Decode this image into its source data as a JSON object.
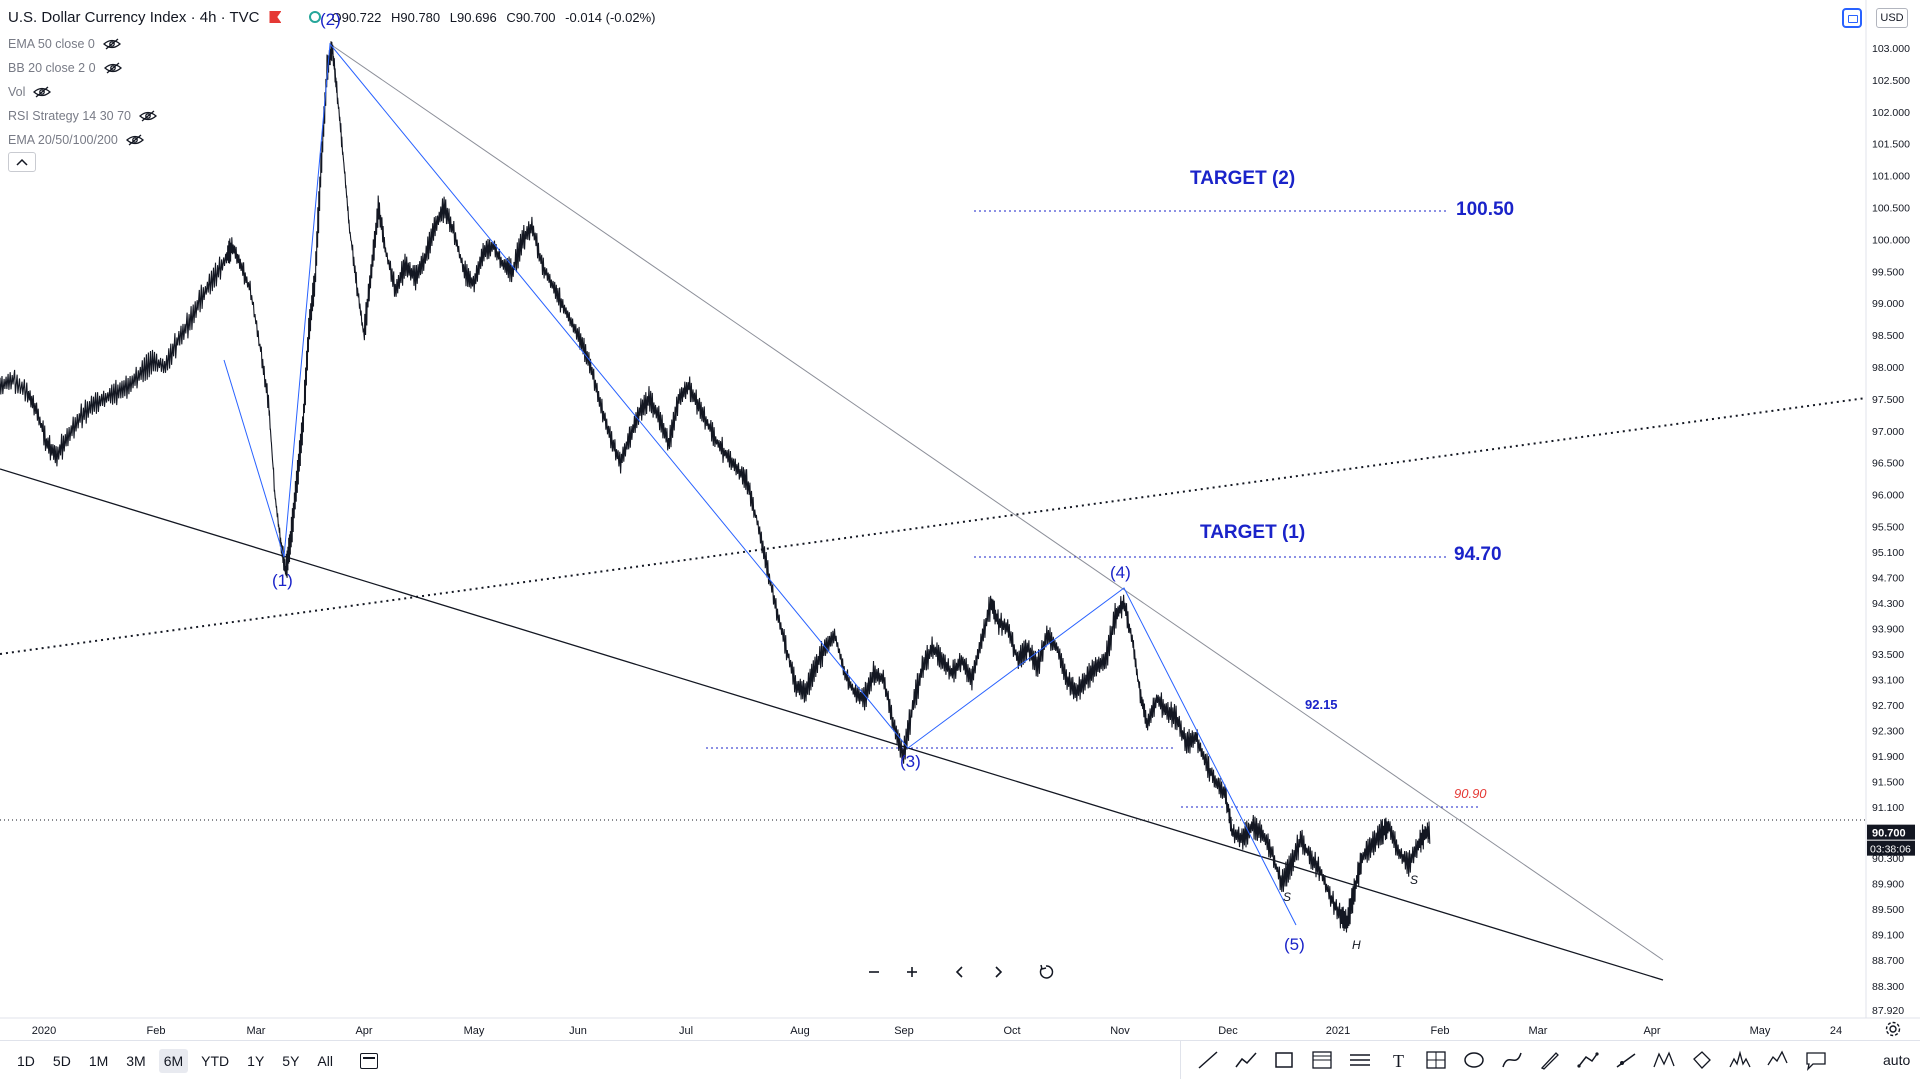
{
  "header": {
    "symbol_title": "U.S. Dollar Currency Index · 4h · TVC",
    "ohlc": {
      "open": "O90.722",
      "high": "H90.780",
      "low": "L90.696",
      "close": "C90.700",
      "change": "-0.014 (-0.02%)"
    }
  },
  "indicators": [
    {
      "label": "EMA 50 close 0"
    },
    {
      "label": "BB 20 close 2 0"
    },
    {
      "label": "Vol"
    },
    {
      "label": "RSI Strategy 14 30 70"
    },
    {
      "label": "EMA 20/50/100/200"
    }
  ],
  "currency_badge": "USD",
  "price_axis": {
    "ticks": [
      "103.000",
      "102.500",
      "102.000",
      "101.500",
      "101.000",
      "100.500",
      "100.000",
      "99.500",
      "99.000",
      "98.500",
      "98.000",
      "97.500",
      "97.000",
      "96.500",
      "96.000",
      "95.500",
      "95.100",
      "94.700",
      "94.300",
      "93.900",
      "93.500",
      "93.100",
      "92.700",
      "92.300",
      "91.900",
      "91.500",
      "91.100",
      "90.300",
      "89.900",
      "89.500",
      "89.100",
      "88.700",
      "88.300",
      "87.920"
    ],
    "last_price": "90.700",
    "countdown": "03:38:06"
  },
  "time_axis": {
    "ticks": [
      "2020",
      "Feb",
      "Mar",
      "Apr",
      "May",
      "Jun",
      "Jul",
      "Aug",
      "Sep",
      "Oct",
      "Nov",
      "Dec",
      "2021",
      "Feb",
      "Mar",
      "Apr",
      "May",
      "24"
    ]
  },
  "annotations": {
    "target2_label": "TARGET (2)",
    "target2_value": "100.50",
    "target1_label": "TARGET (1)",
    "target1_value": "94.70",
    "level_92_15": "92.15",
    "level_90_90": "90.90",
    "wave1": "(1)",
    "wave2": "(2)",
    "wave3": "(3)",
    "wave4": "(4)",
    "wave5": "(5)",
    "shoulder_left": "S",
    "shoulder_right": "S",
    "head": "H"
  },
  "colors": {
    "wave_blue": "#2962ff",
    "label_blue": "#1a23c9",
    "red_label": "#e53935",
    "candle": "#131722",
    "trend_gray": "#8c8f99",
    "trend_black": "#131722",
    "price_tag_bg": "#131722"
  },
  "bottom_bar": {
    "ranges": [
      "1D",
      "5D",
      "1M",
      "3M",
      "6M",
      "YTD",
      "1Y",
      "5Y",
      "All"
    ],
    "active_range": "6M",
    "auto_label": "auto"
  },
  "drawing_tools": [
    "trend-line-icon",
    "path-icon",
    "rectangle-icon",
    "gann-box-icon",
    "horizontal-lines-icon",
    "text-icon",
    "crosshair-frame-icon",
    "ellipse-icon",
    "curve-icon",
    "brush-icon",
    "polyline-icon",
    "ray-icon",
    "xabcd-pattern-icon",
    "rotated-rectangle-icon",
    "head-shoulders-icon",
    "elliott-wave-icon",
    "callout-icon"
  ],
  "nav_controls": [
    "zoom-out-icon",
    "zoom-in-icon",
    "scroll-left-icon",
    "scroll-right-icon",
    "reset-icon"
  ],
  "series": [
    [
      0,
      97.7
    ],
    [
      10,
      97.8
    ],
    [
      22,
      97.6
    ],
    [
      30,
      97.3
    ],
    [
      38,
      96.8
    ],
    [
      46,
      96.6
    ],
    [
      55,
      96.9
    ],
    [
      65,
      97.2
    ],
    [
      75,
      97.4
    ],
    [
      85,
      97.5
    ],
    [
      95,
      97.6
    ],
    [
      105,
      97.7
    ],
    [
      115,
      97.9
    ],
    [
      125,
      98.1
    ],
    [
      135,
      98.0
    ],
    [
      145,
      98.4
    ],
    [
      155,
      98.7
    ],
    [
      165,
      99.1
    ],
    [
      175,
      99.4
    ],
    [
      185,
      99.7
    ],
    [
      190,
      99.9
    ],
    [
      197,
      99.6
    ],
    [
      205,
      99.2
    ],
    [
      213,
      98.3
    ],
    [
      220,
      97.4
    ],
    [
      225,
      96.0
    ],
    [
      230,
      95.2
    ],
    [
      234,
      94.8
    ],
    [
      238,
      95.3
    ],
    [
      243,
      96.2
    ],
    [
      248,
      97.1
    ],
    [
      253,
      98.6
    ],
    [
      258,
      99.4
    ],
    [
      263,
      101.2
    ],
    [
      268,
      102.7
    ],
    [
      272,
      103.0
    ],
    [
      276,
      102.3
    ],
    [
      281,
      101.3
    ],
    [
      286,
      100.2
    ],
    [
      292,
      99.3
    ],
    [
      298,
      98.5
    ],
    [
      304,
      99.5
    ],
    [
      310,
      100.5
    ],
    [
      316,
      99.8
    ],
    [
      324,
      99.2
    ],
    [
      332,
      99.6
    ],
    [
      340,
      99.4
    ],
    [
      348,
      99.7
    ],
    [
      356,
      100.2
    ],
    [
      364,
      100.5
    ],
    [
      372,
      100.1
    ],
    [
      380,
      99.5
    ],
    [
      388,
      99.3
    ],
    [
      396,
      99.8
    ],
    [
      404,
      99.9
    ],
    [
      412,
      99.6
    ],
    [
      420,
      99.5
    ],
    [
      428,
      100.0
    ],
    [
      436,
      100.2
    ],
    [
      444,
      99.6
    ],
    [
      452,
      99.3
    ],
    [
      460,
      99.0
    ],
    [
      468,
      98.7
    ],
    [
      476,
      98.4
    ],
    [
      484,
      98.0
    ],
    [
      492,
      97.4
    ],
    [
      500,
      96.9
    ],
    [
      508,
      96.5
    ],
    [
      516,
      96.9
    ],
    [
      524,
      97.3
    ],
    [
      532,
      97.5
    ],
    [
      540,
      97.2
    ],
    [
      548,
      96.8
    ],
    [
      556,
      97.5
    ],
    [
      564,
      97.7
    ],
    [
      572,
      97.4
    ],
    [
      580,
      97.1
    ],
    [
      588,
      96.8
    ],
    [
      596,
      96.6
    ],
    [
      604,
      96.4
    ],
    [
      612,
      96.2
    ],
    [
      620,
      95.6
    ],
    [
      628,
      94.9
    ],
    [
      636,
      94.2
    ],
    [
      644,
      93.6
    ],
    [
      652,
      93.0
    ],
    [
      660,
      92.9
    ],
    [
      668,
      93.3
    ],
    [
      676,
      93.6
    ],
    [
      684,
      93.8
    ],
    [
      692,
      93.2
    ],
    [
      700,
      92.9
    ],
    [
      708,
      92.8
    ],
    [
      716,
      93.2
    ],
    [
      724,
      93.1
    ],
    [
      732,
      92.4
    ],
    [
      740,
      91.9
    ],
    [
      748,
      92.7
    ],
    [
      756,
      93.3
    ],
    [
      764,
      93.6
    ],
    [
      772,
      93.4
    ],
    [
      780,
      93.2
    ],
    [
      788,
      93.4
    ],
    [
      796,
      93.1
    ],
    [
      804,
      93.7
    ],
    [
      812,
      94.3
    ],
    [
      818,
      94.0
    ],
    [
      826,
      93.9
    ],
    [
      834,
      93.4
    ],
    [
      842,
      93.6
    ],
    [
      850,
      93.3
    ],
    [
      858,
      93.8
    ],
    [
      866,
      93.6
    ],
    [
      874,
      93.1
    ],
    [
      882,
      92.9
    ],
    [
      890,
      93.1
    ],
    [
      898,
      93.3
    ],
    [
      906,
      93.4
    ],
    [
      914,
      94.1
    ],
    [
      921,
      94.3
    ],
    [
      928,
      93.7
    ],
    [
      934,
      92.9
    ],
    [
      940,
      92.4
    ],
    [
      948,
      92.8
    ],
    [
      956,
      92.6
    ],
    [
      964,
      92.5
    ],
    [
      972,
      92.1
    ],
    [
      980,
      92.2
    ],
    [
      988,
      91.8
    ],
    [
      996,
      91.5
    ],
    [
      1004,
      91.3
    ],
    [
      1010,
      90.7
    ],
    [
      1018,
      90.6
    ],
    [
      1026,
      90.8
    ],
    [
      1034,
      90.7
    ],
    [
      1042,
      90.4
    ],
    [
      1050,
      89.9
    ],
    [
      1058,
      90.2
    ],
    [
      1066,
      90.6
    ],
    [
      1074,
      90.3
    ],
    [
      1082,
      90.1
    ],
    [
      1090,
      89.7
    ],
    [
      1098,
      89.4
    ],
    [
      1104,
      89.3
    ],
    [
      1110,
      89.8
    ],
    [
      1116,
      90.3
    ],
    [
      1124,
      90.5
    ],
    [
      1132,
      90.7
    ],
    [
      1138,
      90.8
    ],
    [
      1146,
      90.4
    ],
    [
      1154,
      90.2
    ],
    [
      1162,
      90.5
    ],
    [
      1168,
      90.7
    ],
    [
      1172,
      90.7
    ]
  ]
}
